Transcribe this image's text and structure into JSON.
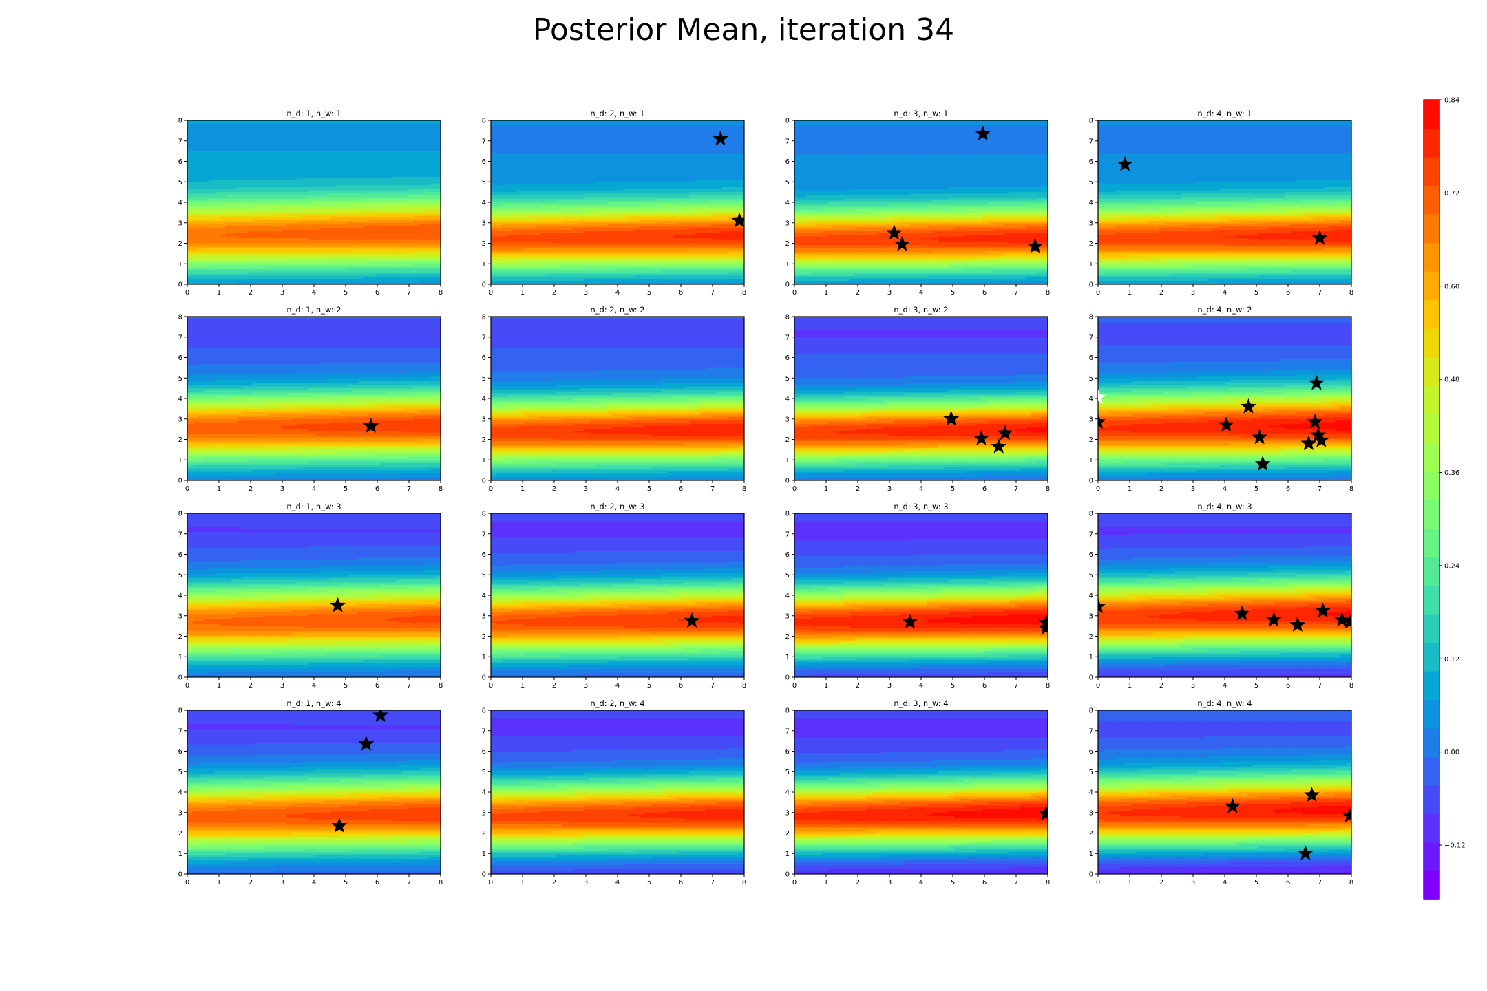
{
  "title": "Posterior Mean, iteration 34",
  "colors": {
    "star": "#000000",
    "highlight_star": "#ffffff",
    "spine": "#000000",
    "rainbow": [
      "#8000ff",
      "#6d19fe",
      "#5a32fc",
      "#474bf7",
      "#3463f1",
      "#207ce8",
      "#0d92de",
      "#06a7d3",
      "#19bbc5",
      "#2ccdb7",
      "#40dea8",
      "#53ea97",
      "#66f486",
      "#79fa74",
      "#8cfd62",
      "#a0fe50",
      "#b3fa3d",
      "#c6f42a",
      "#d9e817",
      "#ecd806",
      "#ffc400",
      "#ffac00",
      "#ff9400",
      "#ff7a00",
      "#ff5f00",
      "#ff4300",
      "#ff2700",
      "#ff0b00"
    ]
  },
  "chart_data": {
    "type": "contour",
    "rows": 4,
    "cols": 4,
    "xlim": [
      0,
      8
    ],
    "ylim": [
      0,
      8
    ],
    "xticks": [
      "0",
      "1",
      "2",
      "3",
      "4",
      "5",
      "6",
      "7",
      "8"
    ],
    "yticks": [
      "0",
      "1",
      "2",
      "3",
      "4",
      "5",
      "6",
      "7",
      "8"
    ],
    "colorbar": {
      "vmin": -0.19,
      "vmax": 0.84,
      "ticks": [
        {
          "value": 0.84,
          "label": "0.84"
        },
        {
          "value": 0.72,
          "label": "0.72"
        },
        {
          "value": 0.6,
          "label": "0.60"
        },
        {
          "value": 0.48,
          "label": "0.48"
        },
        {
          "value": 0.36,
          "label": "0.36"
        },
        {
          "value": 0.24,
          "label": "0.24"
        },
        {
          "value": 0.12,
          "label": "0.12"
        },
        {
          "value": 0.0,
          "label": "0.00"
        },
        {
          "value": -0.12,
          "label": "−0.12"
        }
      ]
    },
    "panels": [
      {
        "title": "n_d: 1, n_w: 1",
        "field": {
          "peak": 0.73,
          "mu": 2.45,
          "sigma": 1.15,
          "tilt": 0.02,
          "lo": -0.02,
          "hi": 0.1,
          "top": 7.3
        },
        "stars": []
      },
      {
        "title": "n_d: 2, n_w: 1",
        "field": {
          "peak": 0.78,
          "mu": 2.3,
          "sigma": 1.1,
          "tilt": 0.02,
          "lo": -0.03,
          "hi": 0.06,
          "top": 7.2
        },
        "stars": [
          {
            "x": 7.25,
            "y": 7.1
          },
          {
            "x": 7.85,
            "y": 3.1
          }
        ]
      },
      {
        "title": "n_d: 3, n_w: 1",
        "field": {
          "peak": 0.79,
          "mu": 2.2,
          "sigma": 1.05,
          "tilt": 0.02,
          "lo": -0.04,
          "hi": 0.06,
          "top": 7.2
        },
        "stars": [
          {
            "x": 5.95,
            "y": 7.35
          },
          {
            "x": 3.15,
            "y": 2.5
          },
          {
            "x": 3.4,
            "y": 1.95
          },
          {
            "x": 7.6,
            "y": 1.85
          }
        ]
      },
      {
        "title": "n_d: 4, n_w: 1",
        "field": {
          "peak": 0.79,
          "mu": 2.3,
          "sigma": 1.1,
          "tilt": 0.02,
          "lo": -0.03,
          "hi": 0.06,
          "top": 7.2
        },
        "stars": [
          {
            "x": 0.85,
            "y": 5.85
          },
          {
            "x": 7.0,
            "y": 2.25
          }
        ]
      },
      {
        "title": "n_d: 1, n_w: 2",
        "field": {
          "peak": 0.76,
          "mu": 2.6,
          "sigma": 1.15,
          "tilt": 0.02,
          "lo": -0.04,
          "hi": -0.02,
          "top": 7.2
        },
        "stars": [
          {
            "x": 5.8,
            "y": 2.65
          }
        ]
      },
      {
        "title": "n_d: 2, n_w: 2",
        "field": {
          "peak": 0.8,
          "mu": 2.4,
          "sigma": 1.1,
          "tilt": 0.02,
          "lo": -0.04,
          "hi": -0.02,
          "top": 7.2
        },
        "stars": []
      },
      {
        "title": "n_d: 3, n_w: 2",
        "field": {
          "peak": 0.81,
          "mu": 2.4,
          "sigma": 1.05,
          "tilt": 0.02,
          "lo": -0.06,
          "hi": -0.03,
          "top": 7.2
        },
        "stars": [
          {
            "x": 4.95,
            "y": 3.0
          },
          {
            "x": 5.9,
            "y": 2.05
          },
          {
            "x": 6.65,
            "y": 2.3
          },
          {
            "x": 6.45,
            "y": 1.65
          }
        ]
      },
      {
        "title": "n_d: 4, n_w: 2",
        "field": {
          "peak": 0.82,
          "mu": 2.6,
          "sigma": 1.2,
          "tilt": 0.02,
          "lo": -0.08,
          "hi": -0.01,
          "top": 7.2
        },
        "stars": [
          {
            "x": 0.0,
            "y": 4.05,
            "white": true
          },
          {
            "x": 0.0,
            "y": 2.85
          },
          {
            "x": 4.05,
            "y": 2.7
          },
          {
            "x": 4.75,
            "y": 3.6
          },
          {
            "x": 5.1,
            "y": 2.1
          },
          {
            "x": 5.2,
            "y": 0.8
          },
          {
            "x": 6.9,
            "y": 4.75
          },
          {
            "x": 6.85,
            "y": 2.85
          },
          {
            "x": 6.95,
            "y": 2.2
          },
          {
            "x": 7.05,
            "y": 1.95
          },
          {
            "x": 6.65,
            "y": 1.8
          }
        ]
      },
      {
        "title": "n_d: 1, n_w: 3",
        "field": {
          "peak": 0.74,
          "mu": 2.75,
          "sigma": 1.2,
          "tilt": 0.02,
          "lo": -0.06,
          "hi": -0.03,
          "top": 7.2
        },
        "stars": [
          {
            "x": 4.75,
            "y": 3.5
          }
        ]
      },
      {
        "title": "n_d: 2, n_w: 3",
        "field": {
          "peak": 0.78,
          "mu": 2.75,
          "sigma": 1.15,
          "tilt": 0.02,
          "lo": -0.07,
          "hi": -0.04,
          "top": 7.2
        },
        "stars": [
          {
            "x": 6.35,
            "y": 2.75
          }
        ]
      },
      {
        "title": "n_d: 3, n_w: 3",
        "field": {
          "peak": 0.83,
          "mu": 2.75,
          "sigma": 1.15,
          "tilt": 0.02,
          "lo": -0.12,
          "hi": -0.04,
          "top": 7.2
        },
        "stars": [
          {
            "x": 3.65,
            "y": 2.7
          },
          {
            "x": 7.95,
            "y": 2.65
          },
          {
            "x": 7.95,
            "y": 2.4
          }
        ]
      },
      {
        "title": "n_d: 4, n_w: 3",
        "field": {
          "peak": 0.81,
          "mu": 3.0,
          "sigma": 1.2,
          "tilt": 0.02,
          "lo": -0.13,
          "hi": -0.03,
          "top": 7.2
        },
        "stars": [
          {
            "x": 0.0,
            "y": 3.45
          },
          {
            "x": 4.55,
            "y": 3.1
          },
          {
            "x": 5.55,
            "y": 2.8
          },
          {
            "x": 6.3,
            "y": 2.55
          },
          {
            "x": 7.1,
            "y": 3.25
          },
          {
            "x": 7.7,
            "y": 2.8
          },
          {
            "x": 7.95,
            "y": 2.7
          }
        ]
      },
      {
        "title": "n_d: 1, n_w: 4",
        "field": {
          "peak": 0.76,
          "mu": 2.85,
          "sigma": 1.2,
          "tilt": 0.02,
          "lo": -0.07,
          "hi": -0.03,
          "top": 7.2
        },
        "stars": [
          {
            "x": 6.1,
            "y": 7.75
          },
          {
            "x": 5.65,
            "y": 6.35
          },
          {
            "x": 4.8,
            "y": 2.35
          }
        ]
      },
      {
        "title": "n_d: 2, n_w: 4",
        "field": {
          "peak": 0.79,
          "mu": 2.85,
          "sigma": 1.15,
          "tilt": 0.02,
          "lo": -0.11,
          "hi": -0.04,
          "top": 7.2
        },
        "stars": []
      },
      {
        "title": "n_d: 3, n_w: 4",
        "field": {
          "peak": 0.83,
          "mu": 2.9,
          "sigma": 1.15,
          "tilt": 0.02,
          "lo": -0.15,
          "hi": -0.04,
          "top": 7.2
        },
        "stars": [
          {
            "x": 7.95,
            "y": 2.95
          }
        ]
      },
      {
        "title": "n_d: 4, n_w: 4",
        "field": {
          "peak": 0.82,
          "mu": 3.05,
          "sigma": 1.2,
          "tilt": 0.02,
          "lo": -0.16,
          "hi": 0.0,
          "top": 7.2
        },
        "stars": [
          {
            "x": 4.25,
            "y": 3.3
          },
          {
            "x": 6.75,
            "y": 3.85
          },
          {
            "x": 7.95,
            "y": 2.85
          },
          {
            "x": 6.55,
            "y": 1.0
          }
        ]
      }
    ]
  }
}
